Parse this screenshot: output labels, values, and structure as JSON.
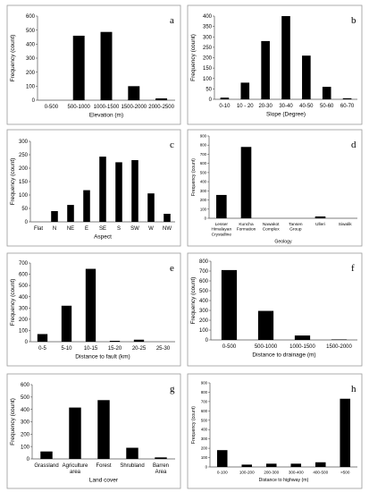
{
  "chart_data": [
    {
      "panel_letter": "a",
      "type": "bar",
      "categories": [
        "0-500",
        "500-1000",
        "1000-1500",
        "1500-2000",
        "2000-2500"
      ],
      "values": [
        0,
        460,
        487,
        100,
        13
      ],
      "xlabel": "Elevation (m)",
      "ylabel": "Frequency (count)",
      "ylim": [
        0,
        600
      ],
      "yticks": [
        0,
        100,
        200,
        300,
        400,
        500,
        600
      ],
      "grid": false
    },
    {
      "panel_letter": "b",
      "type": "bar",
      "categories": [
        "0-10",
        "10 - 20",
        "20-30",
        "30-40",
        "40-50",
        "50-60",
        "60-70"
      ],
      "values": [
        8,
        80,
        280,
        400,
        210,
        60,
        5
      ],
      "xlabel": "Slope (Degree)",
      "ylabel": "Frequency (count)",
      "ylim": [
        0,
        400
      ],
      "yticks": [
        0,
        50,
        100,
        150,
        200,
        250,
        300,
        350,
        400
      ],
      "grid": false
    },
    {
      "panel_letter": "c",
      "type": "bar",
      "categories": [
        "Flat",
        "N",
        "NE",
        "E",
        "SE",
        "S",
        "SW",
        "W",
        "NW"
      ],
      "values": [
        0,
        40,
        63,
        118,
        243,
        222,
        230,
        106,
        30
      ],
      "xlabel": "Aspect",
      "ylabel": "Frequency (count)",
      "ylim": [
        0,
        300
      ],
      "yticks": [
        0,
        50,
        100,
        150,
        200,
        250,
        300
      ],
      "grid": false
    },
    {
      "panel_letter": "d",
      "type": "bar",
      "categories": [
        "Lesser Himalayan Crystalline",
        "Kuncha Formation",
        "Nawakot Complex",
        "Tansen Group",
        "Ulleri",
        "Siwalik"
      ],
      "values": [
        255,
        780,
        0,
        0,
        20,
        0
      ],
      "xlabel": "Geology",
      "ylabel": "Frequency (count)",
      "ylim": [
        0,
        900
      ],
      "yticks": [
        0,
        100,
        200,
        300,
        400,
        500,
        600,
        700,
        800,
        900
      ],
      "grid": false
    },
    {
      "panel_letter": "e",
      "type": "bar",
      "categories": [
        "0-5",
        "5-10",
        "10-15",
        "15-20",
        "20-25",
        "25-30"
      ],
      "values": [
        68,
        320,
        648,
        8,
        18,
        0
      ],
      "xlabel": "Distance to fault (km)",
      "ylabel": "Frequency (count)",
      "ylim": [
        0,
        700
      ],
      "yticks": [
        0,
        100,
        200,
        300,
        400,
        500,
        600,
        700
      ],
      "grid": false
    },
    {
      "panel_letter": "f",
      "type": "bar",
      "categories": [
        "0-500",
        "500-1000",
        "1000-1500",
        "1500-2000"
      ],
      "values": [
        710,
        295,
        45,
        5
      ],
      "xlabel": "Distance to drainage (m)",
      "ylabel": "Frequency (count)",
      "ylim": [
        0,
        800
      ],
      "yticks": [
        0,
        100,
        200,
        300,
        400,
        500,
        600,
        700,
        800
      ],
      "grid": false
    },
    {
      "panel_letter": "g",
      "type": "bar",
      "categories": [
        "Grassland",
        "Agriculture area",
        "Forest",
        "Shrubland",
        "Barren Area"
      ],
      "values": [
        60,
        415,
        475,
        90,
        12
      ],
      "xlabel": "Land cover",
      "ylabel": "Frequency (count)",
      "ylim": [
        0,
        600
      ],
      "yticks": [
        0,
        100,
        200,
        300,
        400,
        500,
        600
      ],
      "grid": false
    },
    {
      "panel_letter": "h",
      "type": "bar",
      "categories": [
        "0-100",
        "100-200",
        "200-300",
        "300-400",
        "400-500",
        ">500"
      ],
      "values": [
        180,
        25,
        35,
        35,
        50,
        730
      ],
      "xlabel": "Distance to highway (m)",
      "ylabel": "Frequency (count)",
      "ylim": [
        0,
        900
      ],
      "yticks": [
        0,
        100,
        200,
        300,
        400,
        500,
        600,
        700,
        800,
        900
      ],
      "grid": false
    }
  ]
}
